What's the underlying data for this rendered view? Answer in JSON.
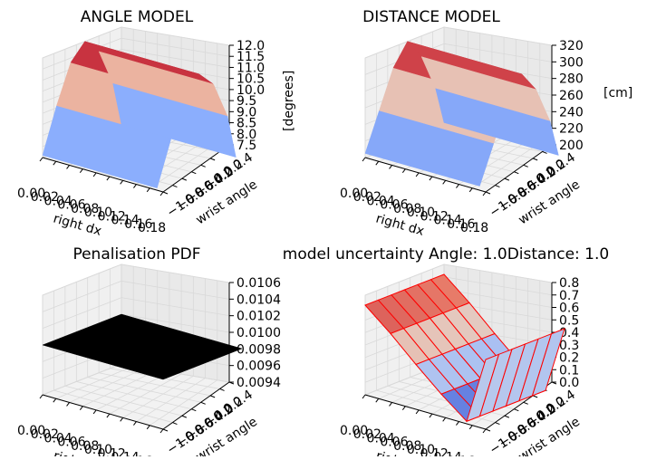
{
  "chart_data": [
    {
      "type": "surface3d",
      "title": "ANGLE MODEL",
      "xlabel": "right dx",
      "ylabel": "wrist angle",
      "zlabel": "[degrees]",
      "x_ticks": [
        "0.00",
        "0.02",
        "0.04",
        "0.06",
        "0.08",
        "0.10",
        "0.12",
        "0.14",
        "0.16",
        "0.18"
      ],
      "y_ticks": [
        "−1.0",
        "−0.8",
        "−0.6",
        "−0.4",
        "−0.2",
        "0.0",
        "0.2",
        "0.4"
      ],
      "z_ticks": [
        "7.5",
        "8.0",
        "8.5",
        "9.0",
        "9.5",
        "10.0",
        "10.5",
        "11.0",
        "11.5",
        "12.0"
      ],
      "zlim": [
        7.5,
        12.0
      ],
      "y_values": [
        -1.0,
        -0.75,
        -0.5,
        -0.25,
        0.0,
        0.25,
        0.5
      ],
      "z_profile": [
        7.6,
        9.6,
        11.3,
        12.0,
        11.3,
        9.6,
        7.6
      ],
      "colormap": "coolwarm"
    },
    {
      "type": "surface3d",
      "title": "DISTANCE MODEL",
      "xlabel": "right dx",
      "ylabel": "wrist angle",
      "zlabel": "[cm]",
      "x_ticks": [
        "0.00",
        "0.02",
        "0.04",
        "0.06",
        "0.08",
        "0.10",
        "0.12",
        "0.14",
        "0.16",
        "0.18"
      ],
      "y_ticks": [
        "−1.0",
        "−0.8",
        "−0.6",
        "−0.4",
        "−0.2",
        "0.0",
        "0.2",
        "0.4"
      ],
      "z_ticks": [
        "200",
        "220",
        "240",
        "260",
        "280",
        "300",
        "320"
      ],
      "zlim": [
        200,
        320
      ],
      "y_values": [
        -1.0,
        -0.75,
        -0.5,
        -0.25,
        0.0,
        0.25,
        0.5
      ],
      "z_profile": [
        205,
        250,
        295,
        320,
        295,
        250,
        205
      ],
      "colormap": "coolwarm"
    },
    {
      "type": "surface3d",
      "title": "Penalisation PDF",
      "xlabel": "right dx",
      "ylabel": "wrist angle",
      "zlabel": "",
      "x_ticks": [
        "0.00",
        "0.02",
        "0.04",
        "0.06",
        "0.08",
        "0.10",
        "0.12",
        "0.14",
        "0.16",
        "0.18"
      ],
      "y_ticks": [
        "−1.0",
        "−0.8",
        "−0.6",
        "−0.4",
        "−0.2",
        "0.0",
        "0.2",
        "0.4"
      ],
      "z_ticks": [
        "0.0094",
        "0.0096",
        "0.0098",
        "0.0100",
        "0.0102",
        "0.0104",
        "0.0106"
      ],
      "zlim": [
        0.0094,
        0.0106
      ],
      "constant_value": 0.01,
      "surface_color": "#000000"
    },
    {
      "type": "surface3d",
      "title": "model uncertainty Angle: 1.0Distance: 1.0",
      "xlabel": "right dx",
      "ylabel": "wrist angle",
      "zlabel": "",
      "x_ticks": [
        "0.00",
        "0.02",
        "0.04",
        "0.06",
        "0.08",
        "0.10",
        "0.12",
        "0.14",
        "0.16",
        "0.18"
      ],
      "y_ticks": [
        "−1.0",
        "−0.8",
        "−0.6",
        "−0.4",
        "−0.2",
        "0.0",
        "0.2",
        "0.4"
      ],
      "z_ticks": [
        "0.0",
        "0.1",
        "0.2",
        "0.3",
        "0.4",
        "0.5",
        "0.6",
        "0.7",
        "0.8"
      ],
      "zlim": [
        0.0,
        0.8
      ],
      "x_values": [
        0.0,
        0.04,
        0.08,
        0.12,
        0.16,
        0.19
      ],
      "z_profile": [
        0.72,
        0.55,
        0.36,
        0.18,
        0.02,
        0.56
      ],
      "colormap": "coolwarm",
      "edge_color": "#ff0000"
    }
  ]
}
